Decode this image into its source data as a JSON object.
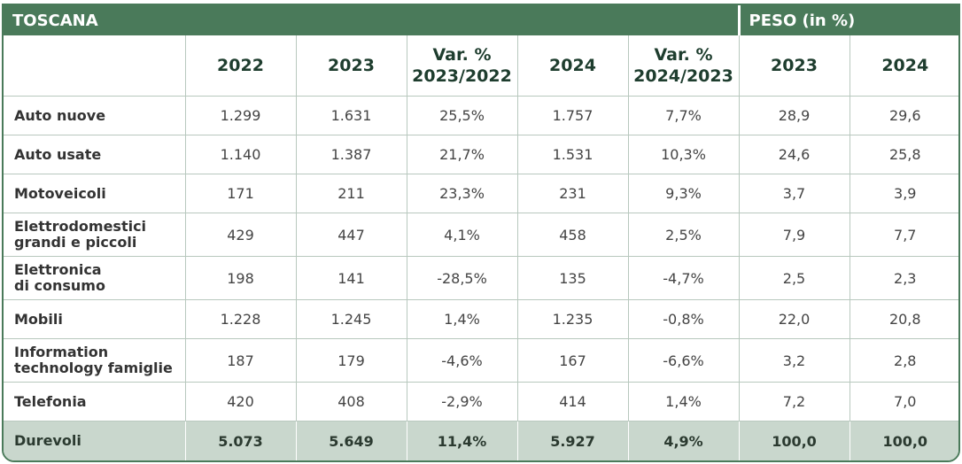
{
  "table": {
    "region_label": "TOSCANA",
    "peso_label": "PESO (in %)",
    "headers": {
      "y2022": "2022",
      "y2023": "2023",
      "var1_line1": "Var. %",
      "var1_line2": "2023/2022",
      "y2024": "2024",
      "var2_line1": "Var. %",
      "var2_line2": "2024/2023",
      "peso2023": "2023",
      "peso2024": "2024"
    },
    "rows": [
      {
        "label1": "Auto nuove",
        "label2": "",
        "v2022": "1.299",
        "v2023": "1.631",
        "var1": "25,5%",
        "v2024": "1.757",
        "var2": "7,7%",
        "p2023": "28,9",
        "p2024": "29,6"
      },
      {
        "label1": "Auto usate",
        "label2": "",
        "v2022": "1.140",
        "v2023": "1.387",
        "var1": "21,7%",
        "v2024": "1.531",
        "var2": "10,3%",
        "p2023": "24,6",
        "p2024": "25,8"
      },
      {
        "label1": "Motoveicoli",
        "label2": "",
        "v2022": "171",
        "v2023": "211",
        "var1": "23,3%",
        "v2024": "231",
        "var2": "9,3%",
        "p2023": "3,7",
        "p2024": "3,9"
      },
      {
        "label1": "Elettrodomestici",
        "label2": "grandi e piccoli",
        "v2022": "429",
        "v2023": "447",
        "var1": "4,1%",
        "v2024": "458",
        "var2": "2,5%",
        "p2023": "7,9",
        "p2024": "7,7"
      },
      {
        "label1": "Elettronica",
        "label2": "di consumo",
        "v2022": "198",
        "v2023": "141",
        "var1": "-28,5%",
        "v2024": "135",
        "var2": "-4,7%",
        "p2023": "2,5",
        "p2024": "2,3"
      },
      {
        "label1": "Mobili",
        "label2": "",
        "v2022": "1.228",
        "v2023": "1.245",
        "var1": "1,4%",
        "v2024": "1.235",
        "var2": "-0,8%",
        "p2023": "22,0",
        "p2024": "20,8"
      },
      {
        "label1": "Information",
        "label2": "technology famiglie",
        "v2022": "187",
        "v2023": "179",
        "var1": "-4,6%",
        "v2024": "167",
        "var2": "-6,6%",
        "p2023": "3,2",
        "p2024": "2,8"
      },
      {
        "label1": "Telefonia",
        "label2": "",
        "v2022": "420",
        "v2023": "408",
        "var1": "-2,9%",
        "v2024": "414",
        "var2": "1,4%",
        "p2023": "7,2",
        "p2024": "7,0"
      }
    ],
    "total": {
      "label": "Durevoli",
      "v2022": "5.073",
      "v2023": "5.649",
      "var1": "11,4%",
      "v2024": "5.927",
      "var2": "4,9%",
      "p2023": "100,0",
      "p2024": "100,0"
    }
  }
}
